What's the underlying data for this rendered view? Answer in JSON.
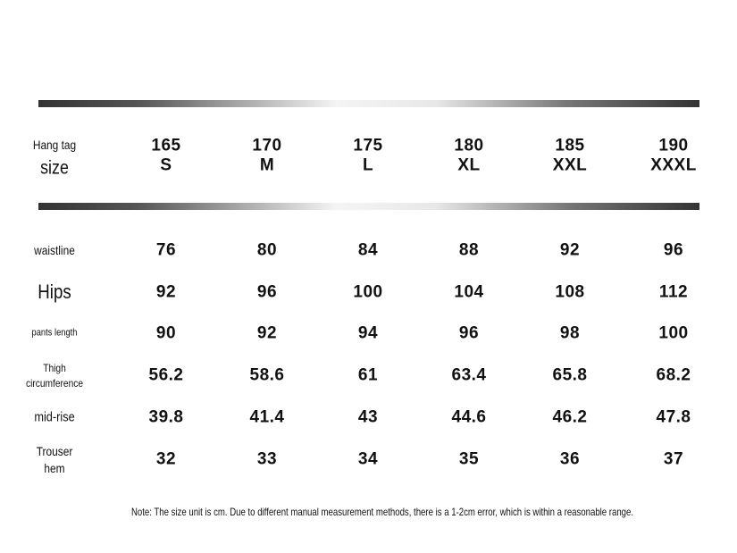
{
  "header": {
    "label": [
      "Hang tag",
      "size"
    ],
    "columns": [
      [
        "165",
        "S"
      ],
      [
        "170",
        "M"
      ],
      [
        "175",
        "L"
      ],
      [
        "180",
        "XL"
      ],
      [
        "185",
        "XXL"
      ],
      [
        "190",
        "XXXL"
      ]
    ]
  },
  "table": {
    "rows": [
      {
        "label": [
          "waistline"
        ],
        "values": [
          76,
          80,
          84,
          88,
          92,
          96
        ]
      },
      {
        "label": [
          "Hips"
        ],
        "values": [
          92,
          96,
          100,
          104,
          108,
          112
        ]
      },
      {
        "label": [
          "pants length"
        ],
        "values": [
          90,
          92,
          94,
          96,
          98,
          100
        ]
      },
      {
        "label": [
          "Thigh",
          "circumference"
        ],
        "values": [
          56.2,
          58.6,
          61,
          63.4,
          65.8,
          68.2
        ]
      },
      {
        "label": [
          "mid-rise"
        ],
        "values": [
          39.8,
          41.4,
          43,
          44.6,
          46.2,
          47.8
        ]
      },
      {
        "label": [
          "Trouser",
          "hem"
        ],
        "values": [
          32,
          33,
          34,
          35,
          36,
          37
        ]
      }
    ]
  },
  "note": "Note: The size unit is cm. Due to different manual measurement methods, there is a 1-2cm error, which is within a reasonable range."
}
